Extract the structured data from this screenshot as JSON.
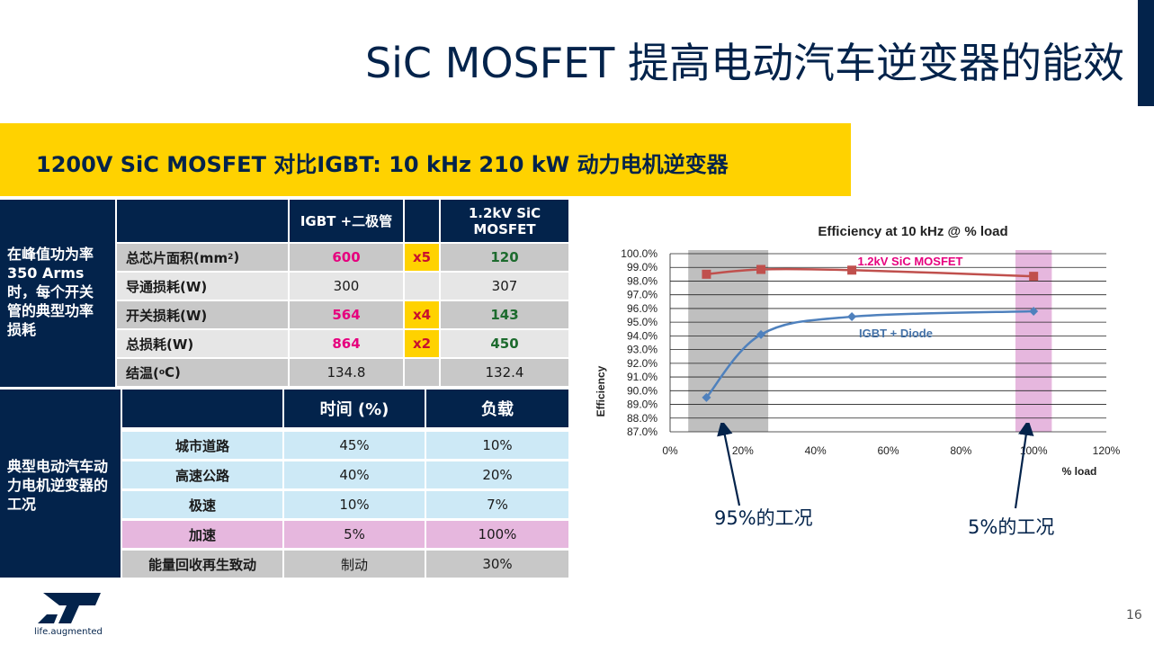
{
  "title": "SiC MOSFET 提高电动汽车逆变器的能效",
  "banner": "1200V SiC MOSFET 对比IGBT: 10 kHz  210 kW 动力电机逆变器",
  "table1": {
    "header_igbt": "IGBT +二极管",
    "header_sic": "1.2kV SiC MOSFET",
    "side_label": "在峰值功为率350 Arms时，每个开关管的典型功率损耗",
    "rows": [
      {
        "label": "总芯片面积(mm²)",
        "igbt": "600",
        "factor": "x5",
        "sic": "120"
      },
      {
        "label": "导通损耗(W)",
        "igbt": "300",
        "factor": "",
        "sic": "307"
      },
      {
        "label": "开关损耗(W)",
        "igbt": "564",
        "factor": "x4",
        "sic": "143"
      },
      {
        "label": "总损耗(W)",
        "igbt": "864",
        "factor": "x2",
        "sic": "450"
      },
      {
        "label": "结温(°C)",
        "igbt": "134.8",
        "factor": "",
        "sic": "132.4"
      }
    ]
  },
  "table2": {
    "header_time": "时间 (%)",
    "header_load": "负载",
    "side_label": "典型电动汽车动力电机逆变器的工况",
    "rows": [
      {
        "label": "城市道路",
        "time": "45%",
        "load": "10%"
      },
      {
        "label": "高速公路",
        "time": "40%",
        "load": "20%"
      },
      {
        "label": "极速",
        "time": "10%",
        "load": "7%"
      },
      {
        "label": "加速",
        "time": "5%",
        "load": "100%"
      },
      {
        "label": "能量回收再生致动",
        "time": "制动",
        "load": "30%"
      }
    ]
  },
  "chart_data": {
    "type": "line",
    "title": "Efficiency at 10 kHz @ % load",
    "xlabel": "% load",
    "ylabel": "Efficiency",
    "xlim": [
      0,
      120
    ],
    "ylim": [
      87.0,
      100.0
    ],
    "x_ticks": [
      "0%",
      "20%",
      "40%",
      "60%",
      "80%",
      "100%",
      "120%"
    ],
    "y_ticks": [
      "87.0%",
      "88.0%",
      "89.0%",
      "90.0%",
      "91.0%",
      "92.0%",
      "93.0%",
      "94.0%",
      "95.0%",
      "96.0%",
      "97.0%",
      "98.0%",
      "99.0%",
      "100.0%"
    ],
    "series": [
      {
        "name": "1.2kV SiC MOSFET",
        "color": "#c0504d",
        "x": [
          10,
          25,
          50,
          100
        ],
        "y": [
          98.5,
          98.85,
          98.8,
          98.35
        ]
      },
      {
        "name": "IGBT + Diode",
        "color": "#4f81bd",
        "x": [
          10,
          25,
          50,
          100
        ],
        "y": [
          89.5,
          94.1,
          95.4,
          95.8
        ]
      }
    ],
    "bands": [
      {
        "from": 5,
        "to": 27,
        "color": "#bfbfbf"
      },
      {
        "from": 95,
        "to": 105,
        "color": "#e6b7de"
      }
    ]
  },
  "annotations": {
    "left": "95%的工况",
    "right": "5%的工况"
  },
  "logo_tagline": "life.augmented",
  "page_number": "16"
}
